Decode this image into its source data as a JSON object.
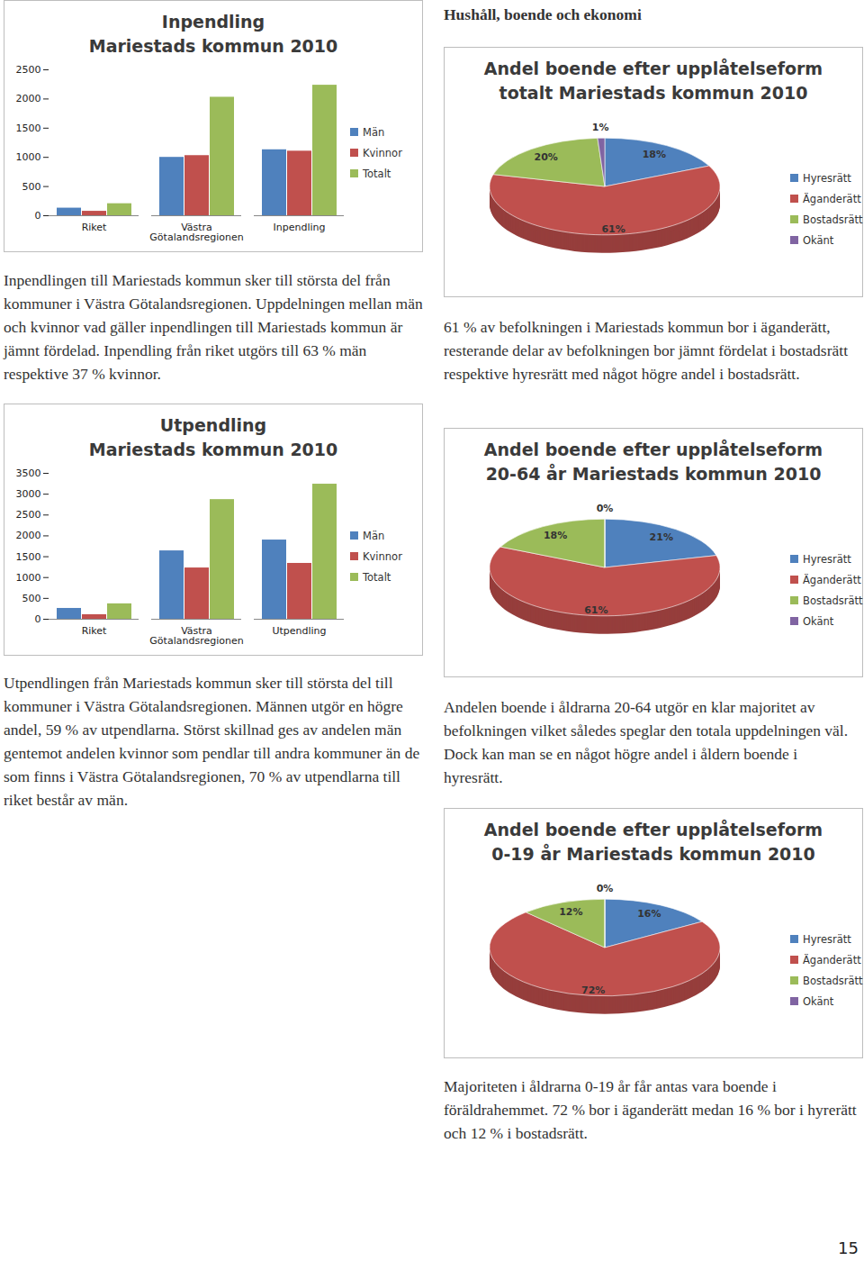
{
  "header": "Hushåll, boende och ekonomi",
  "page_number": "15",
  "chart_data": [
    {
      "type": "bar",
      "title": "Inpendling",
      "subtitle": "Mariestads kommun 2010",
      "categories": [
        "Riket",
        "Västra Götalandsregionen",
        "Inpendling"
      ],
      "series": [
        {
          "name": "Män",
          "color": "#4f81bd",
          "values": [
            130,
            1000,
            1130
          ]
        },
        {
          "name": "Kvinnor",
          "color": "#c0504d",
          "values": [
            76,
            1030,
            1106
          ]
        },
        {
          "name": "Totalt",
          "color": "#9bbb59",
          "values": [
            206,
            2030,
            2236
          ]
        }
      ],
      "ylim": [
        0,
        2500
      ],
      "yticks": [
        0,
        500,
        1000,
        1500,
        2000,
        2500
      ],
      "legend": "right"
    },
    {
      "type": "bar",
      "title": "Utpendling",
      "subtitle": "Mariestads kommun 2010",
      "categories": [
        "Riket",
        "Västra Götalandsregionen",
        "Utpendling"
      ],
      "series": [
        {
          "name": "Män",
          "color": "#4f81bd",
          "values": [
            260,
            1640,
            1900
          ]
        },
        {
          "name": "Kvinnor",
          "color": "#c0504d",
          "values": [
            110,
            1230,
            1340
          ]
        },
        {
          "name": "Totalt",
          "color": "#9bbb59",
          "values": [
            370,
            2870,
            3240
          ]
        }
      ],
      "ylim": [
        0,
        3500
      ],
      "yticks": [
        0,
        500,
        1000,
        1500,
        2000,
        2500,
        3000,
        3500
      ],
      "legend": "right"
    },
    {
      "type": "pie",
      "title": "Andel boende efter upplåtelseform",
      "subtitle": "totalt Mariestads kommun 2010",
      "categories": [
        "Hyresrätt",
        "Äganderätt",
        "Bostadsrätt",
        "Okänt"
      ],
      "values": [
        18,
        61,
        20,
        1
      ],
      "value_labels": [
        "18%",
        "61%",
        "20%",
        "1%"
      ],
      "colors": [
        "#4f81bd",
        "#c0504d",
        "#9bbb59",
        "#8064a2"
      ],
      "data_labels": true,
      "legend": "right"
    },
    {
      "type": "pie",
      "title": "Andel boende efter upplåtelseform",
      "subtitle": "20-64 år Mariestads kommun 2010",
      "categories": [
        "Hyresrätt",
        "Äganderätt",
        "Bostadsrätt",
        "Okänt"
      ],
      "values": [
        21,
        61,
        18,
        0
      ],
      "value_labels": [
        "21%",
        "61%",
        "18%",
        "0%"
      ],
      "colors": [
        "#4f81bd",
        "#c0504d",
        "#9bbb59",
        "#8064a2"
      ],
      "data_labels": true,
      "legend": "right"
    },
    {
      "type": "pie",
      "title": "Andel boende efter upplåtelseform",
      "subtitle": "0-19 år Mariestads kommun 2010",
      "categories": [
        "Hyresrätt",
        "Äganderätt",
        "Bostadsrätt",
        "Okänt"
      ],
      "values": [
        16,
        72,
        12,
        0
      ],
      "value_labels": [
        "16%",
        "72%",
        "12%",
        "0%"
      ],
      "colors": [
        "#4f81bd",
        "#c0504d",
        "#9bbb59",
        "#8064a2"
      ],
      "data_labels": true,
      "legend": "right"
    }
  ],
  "paragraphs": [
    "Inpendlingen till Mariestads kommun sker till största del från kommuner i Västra Götalandsregionen. Uppdelningen mellan män och kvinnor vad gäller inpendlingen till Mariestads kommun är jämnt fördelad. Inpendling från riket utgörs till 63 % män respektive 37 % kvinnor.",
    "Utpendlingen från Mariestads kommun sker till största del till kommuner i Västra Götalandsregionen. Männen utgör en högre andel, 59 % av utpendlarna. Störst skillnad ges av andelen män gentemot andelen kvinnor som pendlar till andra kommuner än de som finns i Västra Götalandsregionen, 70 % av utpendlarna till riket består av män.",
    "61 % av befolkningen i Mariestads kommun bor i äganderätt, resterande delar av befolkningen bor jämnt fördelat i bostadsrätt respektive hyresrätt med något högre andel i bostadsrätt.",
    "Andelen boende i åldrarna 20-64 utgör en klar majoritet av befolkningen vilket således speglar den totala uppdelningen väl. Dock kan man se en något högre andel i åldern boende i hyresrätt.",
    "Majoriteten i åldrarna 0-19 år får antas vara boende i föräldrahemmet. 72 % bor i äganderätt medan 16 % bor i hyrerätt och 12 % i bostadsrätt."
  ]
}
